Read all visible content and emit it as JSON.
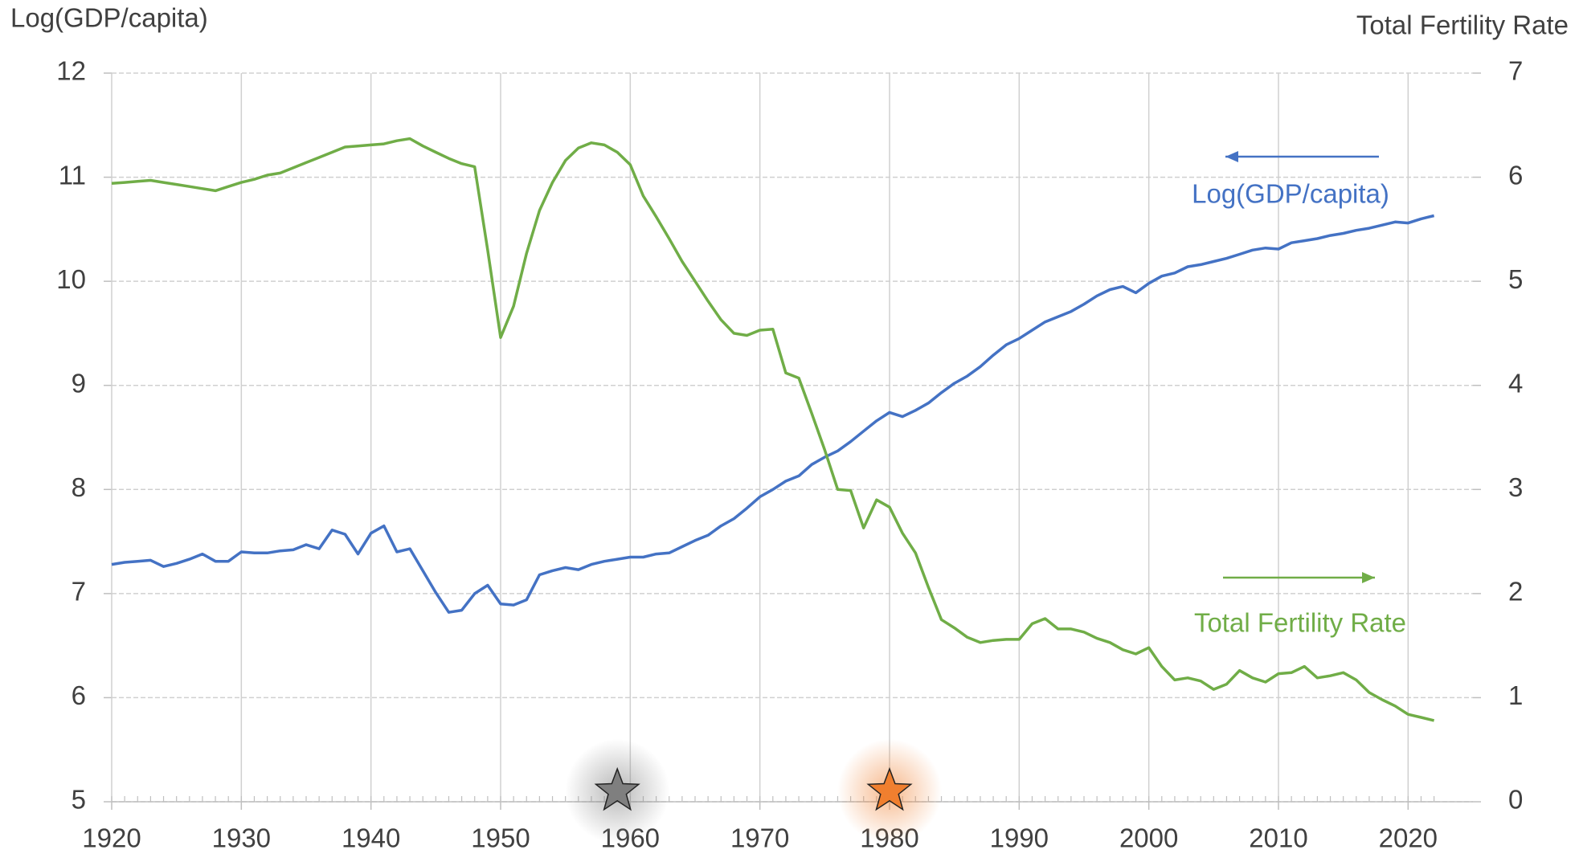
{
  "chart_data": {
    "type": "line",
    "ylabel": "Log(GDP/capita)",
    "y2label": "Total Fertility Rate",
    "x": [
      1920,
      1921,
      1922,
      1923,
      1924,
      1925,
      1926,
      1927,
      1928,
      1929,
      1930,
      1931,
      1932,
      1933,
      1934,
      1935,
      1936,
      1937,
      1938,
      1939,
      1940,
      1941,
      1942,
      1943,
      1944,
      1945,
      1946,
      1947,
      1948,
      1949,
      1950,
      1951,
      1952,
      1953,
      1954,
      1955,
      1956,
      1957,
      1958,
      1959,
      1960,
      1961,
      1962,
      1963,
      1964,
      1965,
      1966,
      1967,
      1968,
      1969,
      1970,
      1971,
      1972,
      1973,
      1974,
      1975,
      1976,
      1977,
      1978,
      1979,
      1980,
      1981,
      1982,
      1983,
      1984,
      1985,
      1986,
      1987,
      1988,
      1989,
      1990,
      1991,
      1992,
      1993,
      1994,
      1995,
      1996,
      1997,
      1998,
      1999,
      2000,
      2001,
      2002,
      2003,
      2004,
      2005,
      2006,
      2007,
      2008,
      2009,
      2010,
      2011,
      2012,
      2013,
      2014,
      2015,
      2016,
      2017,
      2018,
      2019,
      2020,
      2021,
      2022
    ],
    "series": [
      {
        "name": "Log(GDP/capita)",
        "color": "#4472c4",
        "axis": "y",
        "values": [
          7.28,
          7.3,
          7.31,
          7.32,
          7.26,
          7.29,
          7.33,
          7.38,
          7.31,
          7.31,
          7.4,
          7.39,
          7.39,
          7.41,
          7.42,
          7.47,
          7.43,
          7.61,
          7.57,
          7.38,
          7.58,
          7.65,
          7.4,
          7.43,
          7.22,
          7.01,
          6.82,
          6.84,
          7.0,
          7.08,
          6.9,
          6.89,
          6.94,
          7.18,
          7.22,
          7.25,
          7.23,
          7.28,
          7.31,
          7.33,
          7.35,
          7.35,
          7.38,
          7.39,
          7.45,
          7.51,
          7.56,
          7.65,
          7.72,
          7.82,
          7.93,
          8.0,
          8.08,
          8.13,
          8.24,
          8.31,
          8.37,
          8.46,
          8.56,
          8.66,
          8.74,
          8.7,
          8.76,
          8.83,
          8.93,
          9.02,
          9.09,
          9.18,
          9.29,
          9.39,
          9.45,
          9.53,
          9.61,
          9.66,
          9.71,
          9.78,
          9.86,
          9.92,
          9.95,
          9.89,
          9.98,
          10.05,
          10.08,
          10.14,
          10.16,
          10.19,
          10.22,
          10.26,
          10.3,
          10.32,
          10.31,
          10.37,
          10.39,
          10.41,
          10.44,
          10.46,
          10.49,
          10.51,
          10.54,
          10.57,
          10.56,
          10.6,
          10.63
        ]
      },
      {
        "name": "Total Fertility Rate",
        "color": "#70ad47",
        "axis": "y2",
        "values": [
          5.94,
          5.95,
          5.96,
          5.97,
          5.95,
          5.93,
          5.91,
          5.89,
          5.87,
          5.91,
          5.95,
          5.98,
          6.02,
          6.04,
          6.09,
          6.14,
          6.19,
          6.24,
          6.29,
          6.3,
          6.31,
          6.32,
          6.35,
          6.37,
          6.3,
          6.24,
          6.18,
          6.13,
          6.1,
          5.3,
          4.46,
          4.76,
          5.27,
          5.68,
          5.95,
          6.16,
          6.28,
          6.33,
          6.31,
          6.24,
          6.12,
          5.82,
          5.62,
          5.41,
          5.19,
          5.0,
          4.81,
          4.63,
          4.5,
          4.48,
          4.53,
          4.54,
          4.12,
          4.07,
          3.73,
          3.38,
          3.0,
          2.99,
          2.63,
          2.9,
          2.83,
          2.58,
          2.39,
          2.06,
          1.75,
          1.67,
          1.58,
          1.53,
          1.55,
          1.56,
          1.56,
          1.71,
          1.76,
          1.66,
          1.66,
          1.63,
          1.57,
          1.53,
          1.46,
          1.42,
          1.48,
          1.3,
          1.17,
          1.19,
          1.16,
          1.08,
          1.13,
          1.26,
          1.19,
          1.15,
          1.23,
          1.24,
          1.3,
          1.19,
          1.21,
          1.24,
          1.17,
          1.05,
          0.98,
          0.92,
          0.84,
          0.81,
          0.78
        ]
      }
    ],
    "xlim": [
      1920,
      2025
    ],
    "xticks": [
      1920,
      1930,
      1940,
      1950,
      1960,
      1970,
      1980,
      1990,
      2000,
      2010,
      2020
    ],
    "ylim": [
      5,
      12
    ],
    "yticks": [
      5,
      6,
      7,
      8,
      9,
      10,
      11,
      12
    ],
    "y2lim": [
      0,
      7
    ],
    "y2ticks": [
      0,
      1,
      2,
      3,
      4,
      5,
      6,
      7
    ],
    "grid": true,
    "markers": [
      {
        "x": 1959,
        "color": "#7f7f7f"
      },
      {
        "x": 1980,
        "color": "#f07f2f"
      }
    ]
  }
}
